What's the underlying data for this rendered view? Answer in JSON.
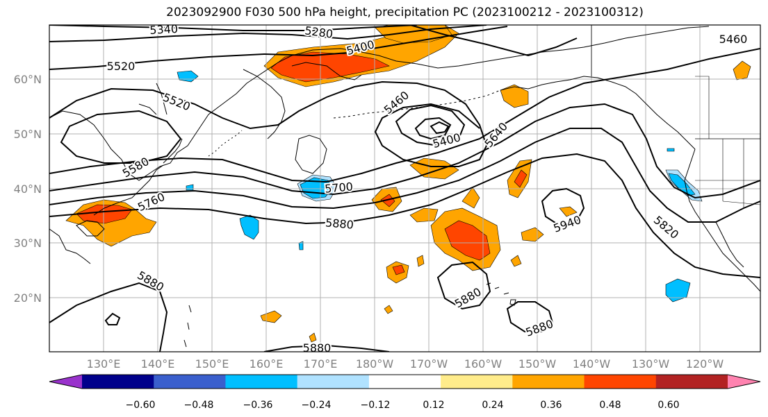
{
  "title": "2023092900 F030 500 hPa height, precipitation PC (2023100212 - 2023100312)",
  "map": {
    "lat_labels": [
      "60°N",
      "50°N",
      "40°N",
      "30°N",
      "20°N"
    ],
    "lon_labels": [
      "130°E",
      "140°E",
      "150°E",
      "160°E",
      "170°E",
      "180°W",
      "170°W",
      "160°W",
      "150°W",
      "140°W",
      "130°W",
      "120°W"
    ],
    "contour_labels": [
      "5340",
      "5280",
      "5400",
      "5460",
      "5520",
      "5520",
      "5460",
      "5400",
      "5640",
      "5580",
      "5760",
      "5700",
      "5880",
      "5940",
      "5820",
      "5880",
      "5880",
      "5880",
      "5880"
    ]
  },
  "colorbar": {
    "colors": [
      "#9932cc",
      "#00008b",
      "#3a5fcd",
      "#00bfff",
      "#b0e2ff",
      "#ffffff",
      "#ffec8b",
      "#ffa500",
      "#ff4500",
      "#b22222",
      "#ff83b0"
    ],
    "ticks": [
      "−0.60",
      "−0.48",
      "−0.36",
      "−0.24",
      "−0.12",
      "0.12",
      "0.24",
      "0.36",
      "0.48",
      "0.60"
    ]
  }
}
